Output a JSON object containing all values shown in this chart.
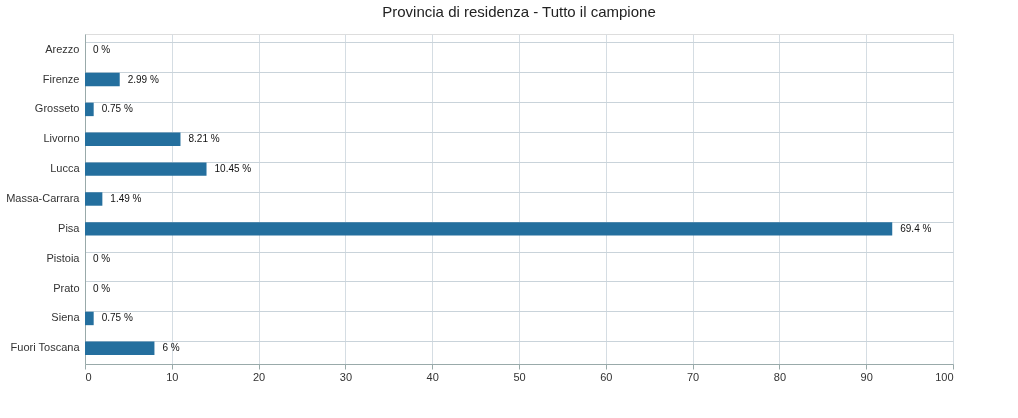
{
  "chart_data": {
    "type": "bar",
    "orientation": "horizontal",
    "title": "Provincia di residenza - Tutto il campione",
    "categories": [
      "Arezzo",
      "Firenze",
      "Grosseto",
      "Livorno",
      "Lucca",
      "Massa-Carrara",
      "Pisa",
      "Pistoia",
      "Prato",
      "Siena",
      "Fuori Toscana"
    ],
    "values": [
      0,
      4,
      1,
      11,
      14,
      2,
      93,
      0,
      0,
      1,
      8
    ],
    "annotations": [
      {
        "text": "0 %",
        "x": 0,
        "y": "Arezzo"
      },
      {
        "text": "2.99 %",
        "x": 4,
        "y": "Firenze"
      },
      {
        "text": "0.75 %",
        "x": 1,
        "y": "Grosseto"
      },
      {
        "text": "8.21 %",
        "x": 11,
        "y": "Livorno"
      },
      {
        "text": "10.45 %",
        "x": 14,
        "y": "Lucca"
      },
      {
        "text": "1.49 %",
        "x": 2,
        "y": "Massa-Carrara"
      },
      {
        "text": "69.4 %",
        "x": 93,
        "y": "Pisa"
      },
      {
        "text": "0 %",
        "x": 0,
        "y": "Pistoia"
      },
      {
        "text": "0 %",
        "x": 0,
        "y": "Prato"
      },
      {
        "text": "0.75 %",
        "x": 1,
        "y": "Siena"
      },
      {
        "text": "6 %",
        "x": 8,
        "y": "Fuori Toscana"
      }
    ],
    "color": "#246f9e",
    "xlim": [
      0,
      100
    ],
    "xticks": [
      0,
      10,
      20,
      30,
      40,
      50,
      60,
      70,
      80,
      90,
      100
    ],
    "grid": true
  }
}
